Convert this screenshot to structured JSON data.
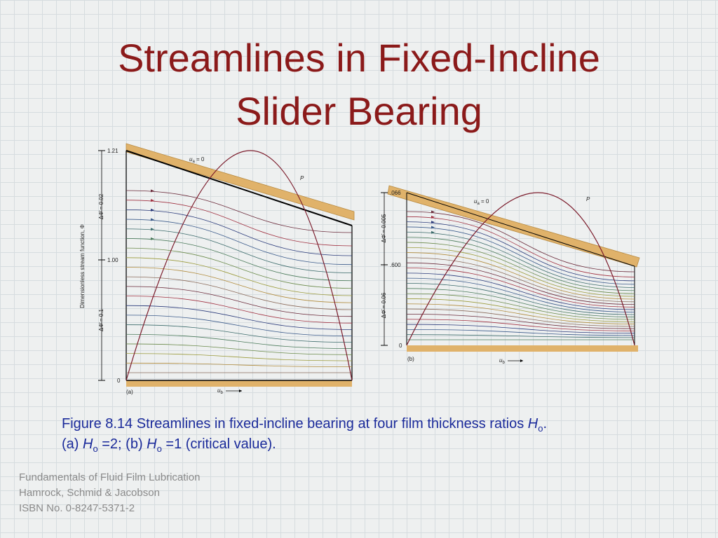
{
  "title": {
    "line1": "Streamlines in Fixed-Incline",
    "line2": "Slider Bearing"
  },
  "figure_a": {
    "tick_top": "1.21",
    "tick_mid": "1.00",
    "tick_zero": "0",
    "ua_symbol": "u",
    "ua_sub": "a",
    "ua_rest": " = 0",
    "p_label": "P",
    "axis_label": "Dimensionless stream function, Φ",
    "delta_upper": "ΔΦ̄ = 0.02",
    "delta_lower": "ΔΦ̄ = 0.1",
    "panel": "(a)",
    "ub_symbol": "u",
    "ub_sub": "b"
  },
  "figure_b": {
    "tick_top": ".066",
    "tick_mid": ".600",
    "tick_zero": "0",
    "ua_symbol": "u",
    "ua_sub": "a",
    "ua_rest": " = 0",
    "p_label": "P",
    "delta_upper": "ΔΦ̄ = 0.005",
    "delta_lower": "ΔΦ̄ = 0.06",
    "panel": "(b)",
    "ub_symbol": "u",
    "ub_sub": "b"
  },
  "caption": {
    "line1": [
      "Figure 8.14   Streamlines in fixed-incline bearing at four film thickness ratios ",
      "H",
      "o",
      "."
    ],
    "line2": [
      "(a) ",
      "H",
      "o",
      " =2; (b) ",
      "H",
      "o",
      " =1 (critical value)."
    ]
  },
  "footer": {
    "line1": "Fundamentals of Fluid Film Lubrication",
    "line2": "Hamrock, Schmid & Jacobson",
    "line3": "ISBN No. 0-8247-5371-2"
  }
}
